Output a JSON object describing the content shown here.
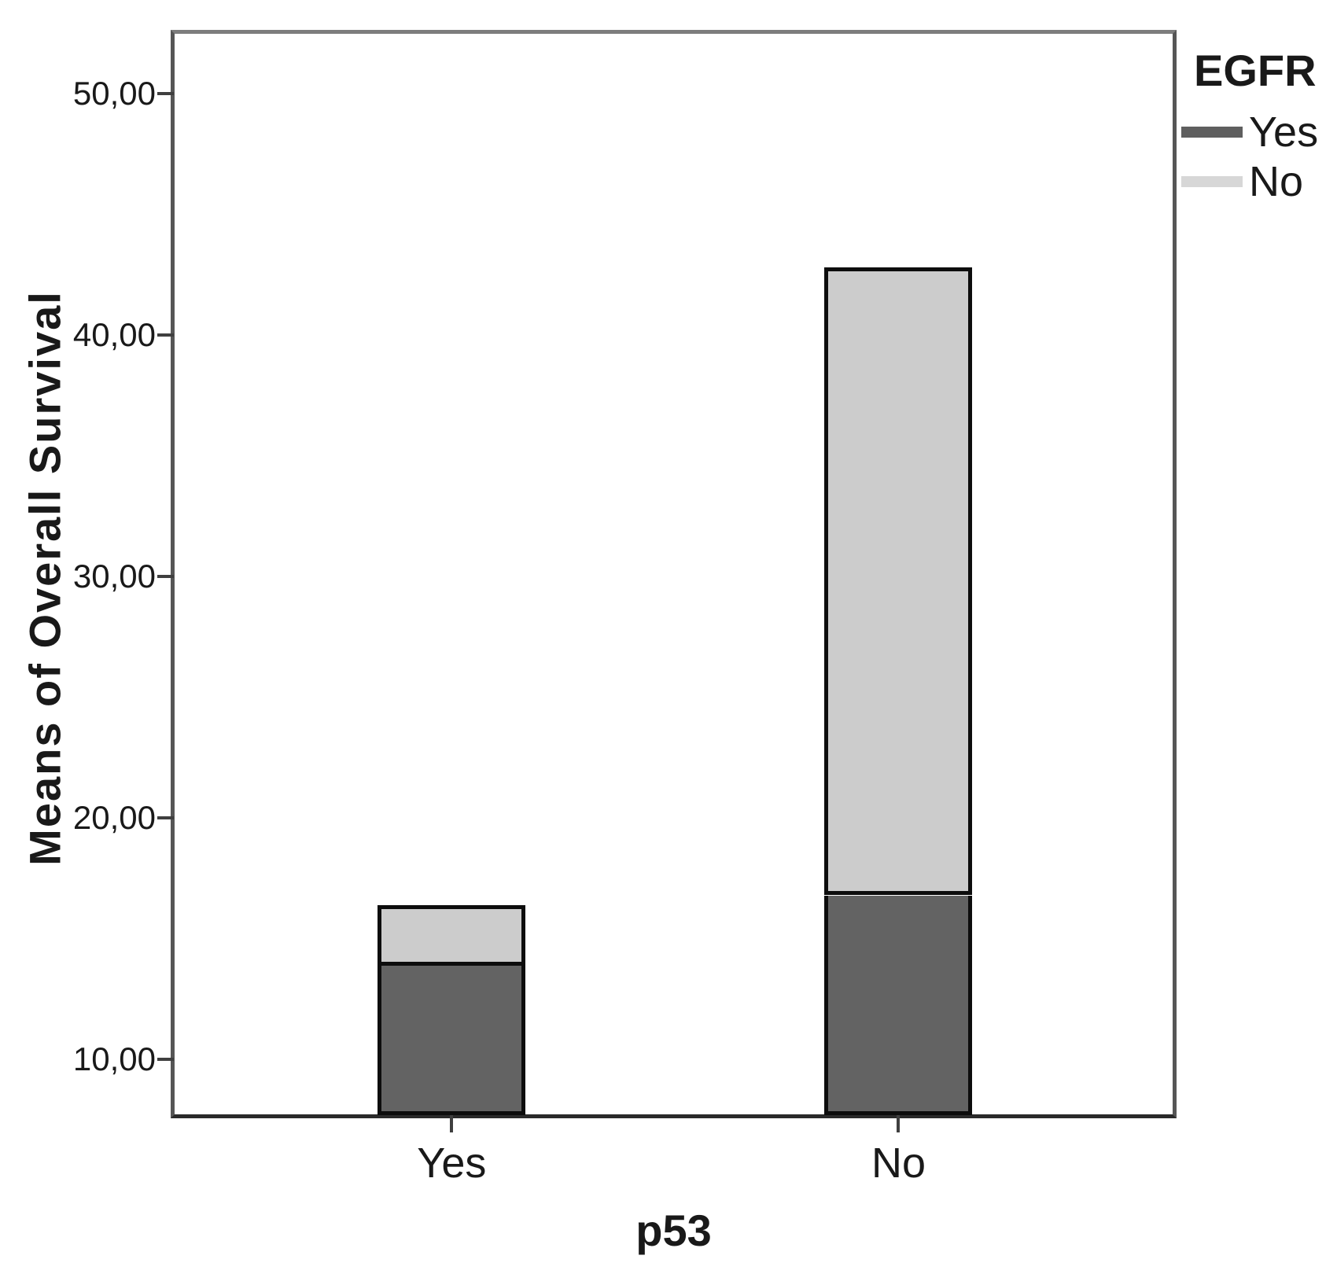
{
  "chart_data": {
    "type": "bar",
    "bar_mode": "stacked",
    "title": "",
    "xlabel": "p53",
    "ylabel": "Means of Overall Survival",
    "categories": [
      "Yes",
      "No"
    ],
    "series": [
      {
        "name": "Yes",
        "color": "#636363",
        "segment_top_values": [
          13.9,
          16.8
        ]
      },
      {
        "name": "No",
        "color": "#cccccc",
        "segment_top_values": [
          16.4,
          42.8
        ]
      }
    ],
    "legend": {
      "title": "EGFR",
      "position": "top-right",
      "swatch_colors": [
        "#5f5f5f",
        "#d7d7d7"
      ]
    },
    "y_axis": {
      "range": [
        7.7,
        52.5
      ],
      "ticks": [
        {
          "value": 10,
          "label": "10,00"
        },
        {
          "value": 20,
          "label": "20,00"
        },
        {
          "value": 30,
          "label": "30,00"
        },
        {
          "value": 40,
          "label": "40,00"
        },
        {
          "value": 50,
          "label": "50,00"
        }
      ]
    },
    "grid": false,
    "decimal_separator": ","
  }
}
